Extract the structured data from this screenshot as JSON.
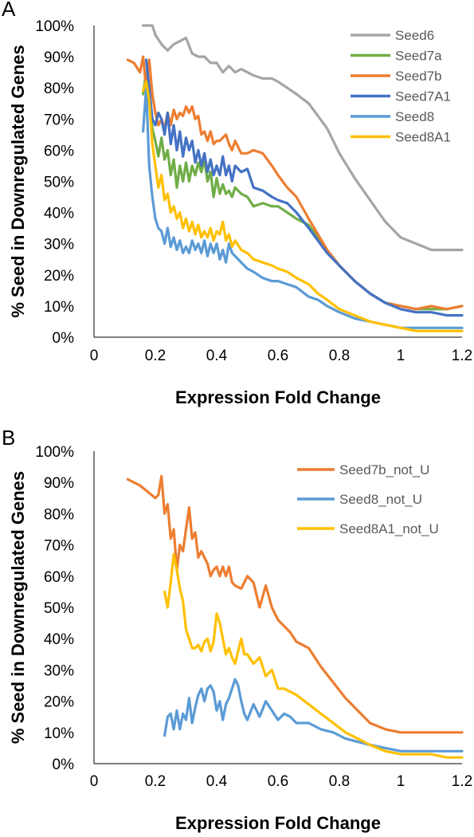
{
  "chart_data": [
    {
      "panel": "A",
      "type": "line",
      "xlabel": "Expression Fold Change",
      "ylabel": "% Seed in Downregulated Genes",
      "xlim": [
        0,
        1.2
      ],
      "ylim": [
        0,
        100
      ],
      "xticks": [
        "0",
        "0.2",
        "0.4",
        "0.6",
        "0.8",
        "1",
        "1.2"
      ],
      "yticks": [
        "0%",
        "10%",
        "20%",
        "30%",
        "40%",
        "50%",
        "60%",
        "70%",
        "80%",
        "90%",
        "100%"
      ],
      "legend_position": "top-right",
      "series": [
        {
          "name": "Seed6",
          "color": "#a5a5a5",
          "x": [
            0.16,
            0.18,
            0.19,
            0.2,
            0.22,
            0.24,
            0.26,
            0.28,
            0.3,
            0.32,
            0.34,
            0.36,
            0.38,
            0.4,
            0.42,
            0.44,
            0.46,
            0.48,
            0.5,
            0.52,
            0.55,
            0.58,
            0.6,
            0.63,
            0.66,
            0.7,
            0.73,
            0.76,
            0.8,
            0.85,
            0.9,
            0.95,
            1.0,
            1.05,
            1.1,
            1.15,
            1.2
          ],
          "y": [
            100,
            100,
            100,
            97,
            94,
            92,
            94,
            95,
            96,
            91,
            90,
            90,
            88,
            88,
            85,
            87,
            85,
            86,
            85,
            84,
            83,
            83,
            82,
            80,
            78,
            75,
            71,
            67,
            59,
            51,
            44,
            37,
            32,
            30,
            28,
            28,
            28
          ]
        },
        {
          "name": "Seed7a",
          "color": "#70ad47",
          "x": [
            0.16,
            0.17,
            0.18,
            0.19,
            0.2,
            0.21,
            0.22,
            0.23,
            0.24,
            0.25,
            0.26,
            0.27,
            0.28,
            0.29,
            0.3,
            0.31,
            0.32,
            0.33,
            0.34,
            0.35,
            0.36,
            0.37,
            0.38,
            0.39,
            0.4,
            0.41,
            0.42,
            0.43,
            0.44,
            0.45,
            0.46,
            0.48,
            0.5,
            0.52,
            0.55,
            0.58,
            0.6,
            0.63,
            0.66,
            0.7,
            0.73,
            0.76,
            0.8,
            0.85,
            0.9,
            0.95,
            1.0,
            1.05,
            1.1,
            1.15,
            1.2
          ],
          "y": [
            78,
            85,
            75,
            67,
            63,
            58,
            64,
            57,
            60,
            52,
            57,
            48,
            55,
            50,
            56,
            50,
            55,
            52,
            56,
            53,
            57,
            50,
            53,
            45,
            51,
            46,
            49,
            46,
            47,
            45,
            48,
            46,
            45,
            42,
            43,
            42,
            42,
            40,
            38,
            36,
            32,
            28,
            23,
            18,
            14,
            11,
            10,
            9,
            9,
            9,
            10
          ]
        },
        {
          "name": "Seed7b",
          "color": "#ed7d31",
          "x": [
            0.11,
            0.13,
            0.15,
            0.16,
            0.17,
            0.18,
            0.19,
            0.2,
            0.21,
            0.22,
            0.23,
            0.24,
            0.25,
            0.26,
            0.27,
            0.28,
            0.29,
            0.3,
            0.31,
            0.32,
            0.33,
            0.34,
            0.35,
            0.36,
            0.37,
            0.38,
            0.39,
            0.4,
            0.41,
            0.42,
            0.43,
            0.44,
            0.45,
            0.46,
            0.48,
            0.5,
            0.52,
            0.55,
            0.58,
            0.6,
            0.63,
            0.66,
            0.7,
            0.73,
            0.76,
            0.8,
            0.85,
            0.9,
            0.95,
            1.0,
            1.05,
            1.1,
            1.15,
            1.2
          ],
          "y": [
            89,
            88,
            85,
            90,
            80,
            89,
            78,
            72,
            68,
            70,
            67,
            72,
            68,
            73,
            70,
            72,
            71,
            74,
            72,
            74,
            70,
            71,
            65,
            66,
            63,
            66,
            62,
            63,
            63,
            64,
            65,
            62,
            60,
            63,
            59,
            59,
            60,
            59,
            55,
            52,
            48,
            45,
            38,
            33,
            28,
            23,
            18,
            14,
            11,
            10,
            9,
            10,
            9,
            10
          ]
        },
        {
          "name": "Seed7A1",
          "color": "#4472c4",
          "x": [
            0.17,
            0.18,
            0.19,
            0.2,
            0.21,
            0.22,
            0.23,
            0.24,
            0.25,
            0.26,
            0.27,
            0.28,
            0.29,
            0.3,
            0.31,
            0.32,
            0.33,
            0.34,
            0.35,
            0.36,
            0.37,
            0.38,
            0.39,
            0.4,
            0.41,
            0.42,
            0.43,
            0.44,
            0.45,
            0.46,
            0.48,
            0.5,
            0.52,
            0.55,
            0.58,
            0.6,
            0.63,
            0.66,
            0.7,
            0.73,
            0.76,
            0.8,
            0.85,
            0.9,
            0.95,
            1.0,
            1.05,
            1.1,
            1.15,
            1.2
          ],
          "y": [
            89,
            80,
            70,
            68,
            72,
            70,
            65,
            72,
            62,
            68,
            60,
            66,
            58,
            64,
            60,
            63,
            56,
            60,
            55,
            59,
            53,
            57,
            52,
            55,
            52,
            58,
            52,
            55,
            50,
            55,
            53,
            54,
            48,
            47,
            45,
            44,
            43,
            40,
            35,
            31,
            27,
            23,
            18,
            14,
            11,
            9,
            8,
            8,
            7,
            7
          ]
        },
        {
          "name": "Seed8",
          "color": "#5b9bd5",
          "x": [
            0.16,
            0.17,
            0.18,
            0.19,
            0.2,
            0.21,
            0.22,
            0.23,
            0.24,
            0.25,
            0.26,
            0.27,
            0.28,
            0.29,
            0.3,
            0.31,
            0.32,
            0.33,
            0.34,
            0.35,
            0.36,
            0.37,
            0.38,
            0.39,
            0.4,
            0.41,
            0.42,
            0.43,
            0.44,
            0.45,
            0.46,
            0.48,
            0.5,
            0.52,
            0.55,
            0.58,
            0.6,
            0.63,
            0.66,
            0.7,
            0.73,
            0.76,
            0.8,
            0.85,
            0.9,
            0.95,
            1.0,
            1.05,
            1.1,
            1.15,
            1.2
          ],
          "y": [
            66,
            80,
            55,
            45,
            38,
            35,
            34,
            30,
            35,
            29,
            32,
            28,
            31,
            27,
            29,
            27,
            31,
            28,
            30,
            27,
            31,
            26,
            30,
            27,
            30,
            25,
            28,
            24,
            30,
            27,
            26,
            24,
            22,
            21,
            19,
            18,
            18,
            17,
            16,
            13,
            12,
            10,
            8,
            6,
            5,
            4,
            3,
            3,
            3,
            3,
            3
          ]
        },
        {
          "name": "Seed8A1",
          "color": "#ffc000",
          "x": [
            0.16,
            0.17,
            0.18,
            0.19,
            0.2,
            0.21,
            0.22,
            0.23,
            0.24,
            0.25,
            0.26,
            0.27,
            0.28,
            0.29,
            0.3,
            0.31,
            0.32,
            0.33,
            0.34,
            0.35,
            0.36,
            0.37,
            0.38,
            0.39,
            0.4,
            0.41,
            0.42,
            0.43,
            0.44,
            0.45,
            0.46,
            0.48,
            0.5,
            0.52,
            0.55,
            0.58,
            0.6,
            0.63,
            0.66,
            0.7,
            0.73,
            0.76,
            0.8,
            0.85,
            0.9,
            0.95,
            1.0,
            1.05,
            1.1,
            1.15,
            1.2
          ],
          "y": [
            79,
            82,
            76,
            62,
            55,
            48,
            52,
            44,
            46,
            40,
            42,
            38,
            40,
            35,
            38,
            34,
            37,
            33,
            36,
            32,
            34,
            32,
            35,
            31,
            34,
            33,
            37,
            31,
            33,
            29,
            31,
            28,
            27,
            25,
            24,
            23,
            22,
            21,
            19,
            17,
            14,
            12,
            9,
            7,
            5,
            4,
            3,
            2,
            2,
            2,
            2
          ]
        }
      ]
    },
    {
      "panel": "B",
      "type": "line",
      "xlabel": "Expression Fold Change",
      "ylabel": "% Seed in Downregulated Genes",
      "xlim": [
        0,
        1.2
      ],
      "ylim": [
        0,
        100
      ],
      "xticks": [
        "0",
        "0.2",
        "0.4",
        "0.6",
        "0.8",
        "1",
        "1.2"
      ],
      "yticks": [
        "0%",
        "10%",
        "20%",
        "30%",
        "40%",
        "50%",
        "60%",
        "70%",
        "80%",
        "90%",
        "100%"
      ],
      "legend_position": "top-right",
      "series": [
        {
          "name": "Seed7b_not_U",
          "color": "#ed7d31",
          "x": [
            0.11,
            0.15,
            0.2,
            0.21,
            0.22,
            0.23,
            0.24,
            0.25,
            0.26,
            0.27,
            0.28,
            0.29,
            0.3,
            0.31,
            0.32,
            0.33,
            0.34,
            0.35,
            0.36,
            0.37,
            0.38,
            0.39,
            0.4,
            0.41,
            0.42,
            0.43,
            0.44,
            0.45,
            0.46,
            0.48,
            0.5,
            0.52,
            0.54,
            0.56,
            0.58,
            0.6,
            0.62,
            0.64,
            0.66,
            0.7,
            0.74,
            0.78,
            0.82,
            0.86,
            0.9,
            0.95,
            1.0,
            1.05,
            1.1,
            1.15,
            1.2
          ],
          "y": [
            91,
            89,
            85,
            86,
            92,
            80,
            83,
            72,
            75,
            62,
            70,
            68,
            75,
            82,
            72,
            74,
            66,
            68,
            66,
            64,
            60,
            62,
            63,
            60,
            63,
            60,
            63,
            58,
            57,
            56,
            60,
            58,
            50,
            57,
            50,
            46,
            44,
            42,
            39,
            37,
            31,
            26,
            21,
            17,
            13,
            11,
            10,
            10,
            10,
            10,
            10
          ]
        },
        {
          "name": "Seed8_not_U",
          "color": "#5b9bd5",
          "x": [
            0.23,
            0.24,
            0.25,
            0.26,
            0.27,
            0.28,
            0.29,
            0.3,
            0.31,
            0.32,
            0.33,
            0.34,
            0.35,
            0.36,
            0.37,
            0.38,
            0.39,
            0.4,
            0.41,
            0.42,
            0.43,
            0.44,
            0.45,
            0.46,
            0.47,
            0.48,
            0.49,
            0.5,
            0.52,
            0.54,
            0.56,
            0.58,
            0.6,
            0.62,
            0.64,
            0.66,
            0.7,
            0.74,
            0.78,
            0.82,
            0.86,
            0.9,
            0.95,
            1.0,
            1.05,
            1.1,
            1.15,
            1.2
          ],
          "y": [
            9,
            15,
            16,
            11,
            17,
            11,
            16,
            14,
            21,
            13,
            18,
            22,
            24,
            20,
            24,
            25,
            23,
            17,
            20,
            14,
            19,
            21,
            24,
            27,
            25,
            20,
            16,
            14,
            19,
            15,
            20,
            17,
            14,
            16,
            15,
            13,
            13,
            11,
            10,
            8,
            7,
            6,
            5,
            4,
            4,
            4,
            4,
            4
          ]
        },
        {
          "name": "Seed8A1_not_U",
          "color": "#ffc000",
          "x": [
            0.23,
            0.24,
            0.25,
            0.26,
            0.27,
            0.28,
            0.29,
            0.3,
            0.31,
            0.32,
            0.33,
            0.34,
            0.35,
            0.36,
            0.37,
            0.38,
            0.39,
            0.4,
            0.41,
            0.42,
            0.43,
            0.44,
            0.45,
            0.46,
            0.47,
            0.48,
            0.49,
            0.5,
            0.52,
            0.54,
            0.56,
            0.58,
            0.6,
            0.62,
            0.64,
            0.66,
            0.7,
            0.74,
            0.78,
            0.82,
            0.86,
            0.9,
            0.95,
            1.0,
            1.05,
            1.1,
            1.15,
            1.2
          ],
          "y": [
            55,
            50,
            58,
            67,
            62,
            56,
            52,
            43,
            40,
            37,
            37,
            38,
            36,
            39,
            40,
            36,
            39,
            48,
            45,
            40,
            35,
            37,
            34,
            32,
            36,
            40,
            35,
            35,
            32,
            34,
            28,
            30,
            24,
            24,
            23,
            22,
            19,
            16,
            13,
            10,
            8,
            6,
            4,
            3,
            3,
            3,
            2,
            2
          ]
        }
      ]
    }
  ]
}
